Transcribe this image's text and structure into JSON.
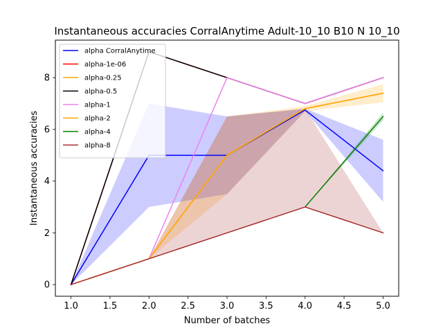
{
  "chart_data": {
    "type": "line",
    "title": "Instantaneous accuracies CorralAnytime Adult-10_10 B10 N 10_10",
    "xlabel": "Number of batches",
    "ylabel": "Instantaneous accuracies",
    "xlim": [
      0.8,
      5.2
    ],
    "ylim": [
      -0.45,
      9.45
    ],
    "xticks": [
      1.0,
      1.5,
      2.0,
      2.5,
      3.0,
      3.5,
      4.0,
      4.5,
      5.0
    ],
    "xtick_labels": [
      "1.0",
      "1.5",
      "2.0",
      "2.5",
      "3.0",
      "3.5",
      "4.0",
      "4.5",
      "5.0"
    ],
    "yticks": [
      0,
      2,
      4,
      6,
      8
    ],
    "ytick_labels": [
      "0",
      "2",
      "4",
      "6",
      "8"
    ],
    "grid": false,
    "legend_position": "top-left",
    "x": [
      1,
      2,
      3,
      4,
      5
    ],
    "series": [
      {
        "name": "alpha CorralAnytime",
        "color": "#0000ff",
        "values": [
          0,
          5,
          5,
          6.75,
          4.4
        ],
        "band_lower": [
          0,
          3,
          3.5,
          6.7,
          3.2
        ],
        "band_upper": [
          0,
          7,
          6.5,
          6.8,
          5.6
        ],
        "band_color": "#0000ff"
      },
      {
        "name": "alpha-1e-06",
        "color": "#ff0000",
        "values": [
          0,
          9,
          8,
          7,
          8
        ]
      },
      {
        "name": "alpha-0.25",
        "color": "#ffa500",
        "values": [
          0,
          1,
          5,
          6.8,
          7.4
        ],
        "band_lower": [
          0,
          1,
          3.5,
          6.7,
          7.05
        ],
        "band_upper": [
          0,
          1,
          6.5,
          6.9,
          7.75
        ],
        "band_color": "#ffa500"
      },
      {
        "name": "alpha-0.5",
        "color": "#000000",
        "values": [
          0,
          9,
          8,
          7,
          8
        ]
      },
      {
        "name": "alpha-1",
        "color": "#ee82ee",
        "values": [
          null,
          1,
          8,
          7,
          8
        ]
      },
      {
        "name": "alpha-2",
        "color": "#ffa500",
        "values": [
          null,
          1,
          5,
          6.8,
          7.4
        ]
      },
      {
        "name": "alpha-4",
        "color": "#008000",
        "values": [
          null,
          null,
          null,
          3,
          6.5
        ],
        "band_lower": [
          null,
          null,
          null,
          3,
          6.35
        ],
        "band_upper": [
          null,
          null,
          null,
          3,
          6.65
        ],
        "band_color": "#008000"
      },
      {
        "name": "alpha-8",
        "color": "#a52a2a",
        "values": [
          0,
          1,
          2,
          3,
          2
        ],
        "band_lower": [
          0,
          1,
          2,
          3,
          2
        ],
        "band_upper": [
          0,
          1,
          6.5,
          6.8,
          2
        ],
        "band_color": "#a52a2a"
      }
    ]
  }
}
